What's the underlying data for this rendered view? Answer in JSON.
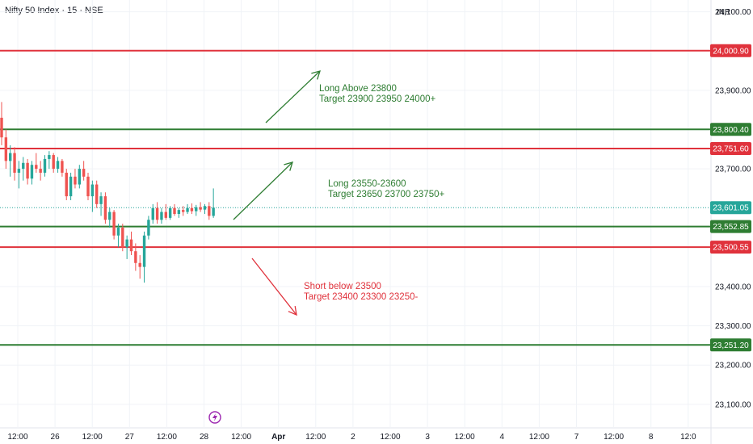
{
  "header": {
    "title": "Nifty 50 Index · 15 · NSE",
    "currency": "INR"
  },
  "colors": {
    "green": "#2e7d32",
    "red": "#e0323c",
    "current": "#26a69a",
    "grid": "#f0f3f7",
    "text": "#131722"
  },
  "chart_data": {
    "type": "candlestick",
    "ylim": [
      23040,
      24130
    ],
    "grid": true,
    "x_ticks": [
      "12:00",
      "26",
      "12:00",
      "27",
      "12:00",
      "28",
      "12:00",
      "Apr",
      "12:00",
      "2",
      "12:00",
      "3",
      "12:00",
      "4",
      "12:00",
      "7",
      "12:00",
      "8",
      "12:0"
    ],
    "y_ticks": [
      {
        "value": 24100,
        "label": "24,100.00"
      },
      {
        "value": 23900,
        "label": "23,900.00"
      },
      {
        "value": 23700,
        "label": "23,700.00"
      },
      {
        "value": 23400,
        "label": "23,400.00"
      },
      {
        "value": 23300,
        "label": "23,300.00"
      },
      {
        "value": 23200,
        "label": "23,200.00"
      },
      {
        "value": 23100,
        "label": "23,100.00"
      }
    ],
    "levels": [
      {
        "value": 24000.9,
        "label": "24,000.90",
        "color": "red"
      },
      {
        "value": 23800.4,
        "label": "23,800.40",
        "color": "green"
      },
      {
        "value": 23751.6,
        "label": "23,751.60",
        "color": "red"
      },
      {
        "value": 23552.85,
        "label": "23,552.85",
        "color": "green"
      },
      {
        "value": 23500.55,
        "label": "23,500.55",
        "color": "red"
      },
      {
        "value": 23251.2,
        "label": "23,251.20",
        "color": "green"
      }
    ],
    "current_price": {
      "value": 23601.05,
      "label": "23,601.05"
    },
    "candles": [
      [
        23830,
        23870,
        23760,
        23780
      ],
      [
        23780,
        23800,
        23700,
        23720
      ],
      [
        23720,
        23760,
        23680,
        23740
      ],
      [
        23740,
        23755,
        23670,
        23690
      ],
      [
        23690,
        23720,
        23650,
        23700
      ],
      [
        23700,
        23730,
        23670,
        23715
      ],
      [
        23715,
        23725,
        23660,
        23675
      ],
      [
        23675,
        23720,
        23660,
        23710
      ],
      [
        23710,
        23740,
        23690,
        23700
      ],
      [
        23700,
        23720,
        23670,
        23690
      ],
      [
        23690,
        23735,
        23680,
        23725
      ],
      [
        23725,
        23745,
        23700,
        23735
      ],
      [
        23735,
        23740,
        23690,
        23700
      ],
      [
        23700,
        23730,
        23690,
        23720
      ],
      [
        23720,
        23725,
        23680,
        23690
      ],
      [
        23690,
        23700,
        23620,
        23630
      ],
      [
        23630,
        23690,
        23620,
        23680
      ],
      [
        23680,
        23700,
        23650,
        23660
      ],
      [
        23660,
        23710,
        23650,
        23700
      ],
      [
        23700,
        23720,
        23670,
        23680
      ],
      [
        23680,
        23690,
        23620,
        23630
      ],
      [
        23630,
        23670,
        23590,
        23660
      ],
      [
        23660,
        23670,
        23600,
        23610
      ],
      [
        23610,
        23640,
        23580,
        23630
      ],
      [
        23630,
        23640,
        23560,
        23570
      ],
      [
        23570,
        23600,
        23550,
        23590
      ],
      [
        23590,
        23595,
        23520,
        23530
      ],
      [
        23530,
        23560,
        23500,
        23550
      ],
      [
        23550,
        23560,
        23490,
        23500
      ],
      [
        23500,
        23530,
        23470,
        23520
      ],
      [
        23520,
        23540,
        23480,
        23490
      ],
      [
        23490,
        23510,
        23440,
        23460
      ],
      [
        23460,
        23480,
        23420,
        23450
      ],
      [
        23450,
        23540,
        23410,
        23530
      ],
      [
        23530,
        23580,
        23520,
        23570
      ],
      [
        23570,
        23610,
        23560,
        23600
      ],
      [
        23600,
        23615,
        23560,
        23570
      ],
      [
        23570,
        23600,
        23560,
        23590
      ],
      [
        23590,
        23610,
        23570,
        23575
      ],
      [
        23575,
        23605,
        23570,
        23600
      ],
      [
        23600,
        23610,
        23580,
        23585
      ],
      [
        23585,
        23600,
        23575,
        23595
      ],
      [
        23595,
        23605,
        23580,
        23590
      ],
      [
        23590,
        23610,
        23585,
        23600
      ],
      [
        23600,
        23612,
        23585,
        23592
      ],
      [
        23592,
        23608,
        23580,
        23602
      ],
      [
        23602,
        23615,
        23590,
        23596
      ],
      [
        23596,
        23610,
        23585,
        23605
      ],
      [
        23605,
        23615,
        23570,
        23580
      ],
      [
        23580,
        23650,
        23575,
        23601
      ]
    ],
    "arrows": [
      {
        "from": [
          329,
          152
        ],
        "to": [
          396,
          88
        ],
        "color": "green"
      },
      {
        "from": [
          289,
          272
        ],
        "to": [
          362,
          201
        ],
        "color": "green"
      },
      {
        "from": [
          312,
          320
        ],
        "to": [
          367,
          390
        ],
        "color": "red"
      }
    ],
    "annotations": [
      {
        "x": 395,
        "y": 113,
        "color": "green",
        "lines": [
          "Long Above 23800",
          "Target 23900 23950 24000+"
        ]
      },
      {
        "x": 406,
        "y": 231,
        "color": "green",
        "lines": [
          "Long 23550-23600",
          "Target 23650 23700 23750+"
        ]
      },
      {
        "x": 376,
        "y": 358,
        "color": "red",
        "lines": [
          "Short below 23500",
          "Target 23400 23300 23250-"
        ]
      }
    ]
  }
}
